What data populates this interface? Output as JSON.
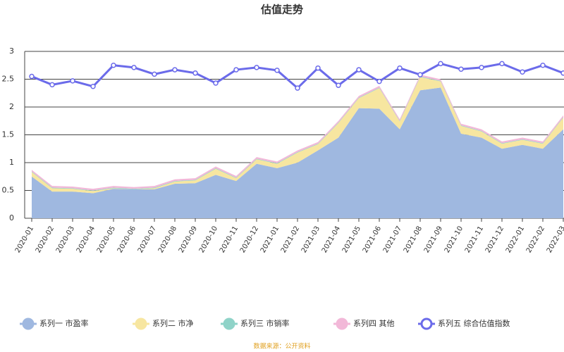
{
  "chart_data": {
    "type": "stacked-area-line",
    "title": "估值走势",
    "source": "数据来源：公开资料",
    "categories": [
      "2020-01",
      "2020-02",
      "2020-03",
      "2020-04",
      "2020-05",
      "2020-06",
      "2020-07",
      "2020-08",
      "2020-09",
      "2020-10",
      "2020-11",
      "2020-12",
      "2021-01",
      "2021-02",
      "2021-03",
      "2021-04",
      "2021-05",
      "2021-06",
      "2021-07",
      "2021-08",
      "2021-09",
      "2021-10",
      "2021-11",
      "2021-12",
      "2022-01",
      "2022-02",
      "2022-03"
    ],
    "ylim": [
      0,
      3
    ],
    "yticks": [
      0,
      0.5,
      1,
      1.5,
      2,
      2.5,
      3
    ],
    "grid": true,
    "series": [
      {
        "name": "系列一 市盈率",
        "color": "#9fb8e0",
        "stack": true,
        "values": [
          0.75,
          0.48,
          0.48,
          0.45,
          0.53,
          0.52,
          0.52,
          0.62,
          0.63,
          0.78,
          0.67,
          0.98,
          0.9,
          1.0,
          1.22,
          1.45,
          1.98,
          1.97,
          1.6,
          2.3,
          2.35,
          1.52,
          1.45,
          1.25,
          1.32,
          1.25,
          1.6
        ]
      },
      {
        "name": "系列二 市净",
        "color": "#f7e6a0",
        "stack": true,
        "values": [
          0.08,
          0.06,
          0.05,
          0.04,
          0.01,
          0.0,
          0.02,
          0.04,
          0.05,
          0.11,
          0.05,
          0.08,
          0.08,
          0.18,
          0.11,
          0.26,
          0.18,
          0.37,
          0.14,
          0.24,
          0.11,
          0.14,
          0.11,
          0.09,
          0.09,
          0.09,
          0.21
        ]
      },
      {
        "name": "系列三 市销率",
        "color": "#8fd3c8",
        "stack": true,
        "values": [
          0.01,
          0.01,
          0.01,
          0.01,
          0.01,
          0.01,
          0.01,
          0.01,
          0.01,
          0.01,
          0.01,
          0.01,
          0.01,
          0.01,
          0.01,
          0.01,
          0.01,
          0.01,
          0.01,
          0.01,
          0.01,
          0.01,
          0.01,
          0.01,
          0.01,
          0.01,
          0.01
        ]
      },
      {
        "name": "系列四 其他",
        "color": "#f2b8d8",
        "stack": true,
        "values": [
          0.03,
          0.03,
          0.03,
          0.03,
          0.03,
          0.03,
          0.03,
          0.03,
          0.03,
          0.03,
          0.03,
          0.03,
          0.03,
          0.03,
          0.03,
          0.03,
          0.03,
          0.03,
          0.03,
          0.03,
          0.03,
          0.03,
          0.03,
          0.03,
          0.03,
          0.03,
          0.03
        ]
      },
      {
        "name": "系列五 综合估值指数",
        "color": "#6b6bea",
        "stack": false,
        "values": [
          2.55,
          2.4,
          2.47,
          2.37,
          2.75,
          2.71,
          2.59,
          2.67,
          2.61,
          2.43,
          2.67,
          2.71,
          2.66,
          2.34,
          2.7,
          2.39,
          2.67,
          2.46,
          2.7,
          2.58,
          2.78,
          2.68,
          2.71,
          2.78,
          2.63,
          2.75,
          2.61
        ]
      }
    ]
  }
}
